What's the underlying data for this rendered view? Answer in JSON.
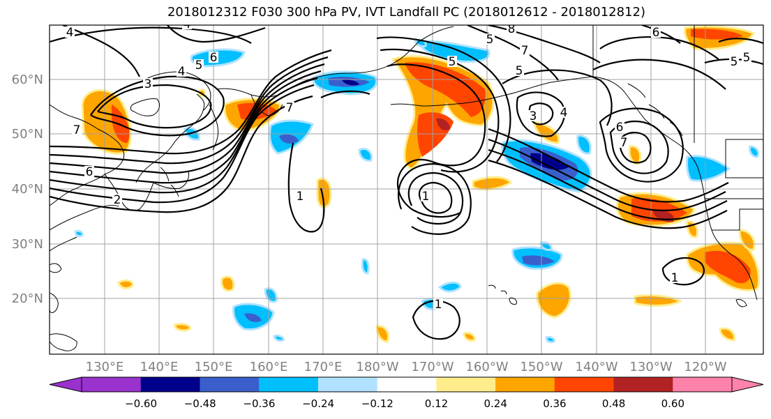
{
  "title": "2018012312 F030 300 hPa PV, IVT Landfall PC (2018012612 - 2018012812)",
  "map": {
    "lon_ticks": [
      "130°E",
      "140°E",
      "150°E",
      "160°E",
      "170°E",
      "180°W",
      "170°W",
      "160°W",
      "150°W",
      "140°W",
      "130°W",
      "120°W"
    ],
    "lat_ticks": [
      "60°N",
      "50°N",
      "40°N",
      "30°N",
      "20°N"
    ],
    "contour_labels": [
      "4",
      "4",
      "5",
      "6",
      "3",
      "4",
      "7",
      "6",
      "2",
      "1",
      "7",
      "8",
      "5",
      "5",
      "5",
      "7",
      "3",
      "4",
      "6",
      "7",
      "5",
      "5",
      "6",
      "1",
      "1",
      "1"
    ],
    "gridlines": true
  },
  "colorbar": {
    "tick_labels": [
      "−0.60",
      "−0.48",
      "−0.36",
      "−0.24",
      "−0.12",
      "0.12",
      "0.24",
      "0.36",
      "0.48",
      "0.60"
    ],
    "colors": [
      "#9a32cd",
      "#00008b",
      "#3a5fcd",
      "#00bfff",
      "#b0e2ff",
      "#ffffff",
      "#ffec8b",
      "#ffa500",
      "#ff4500",
      "#b22222",
      "#ff82ab"
    ]
  }
}
